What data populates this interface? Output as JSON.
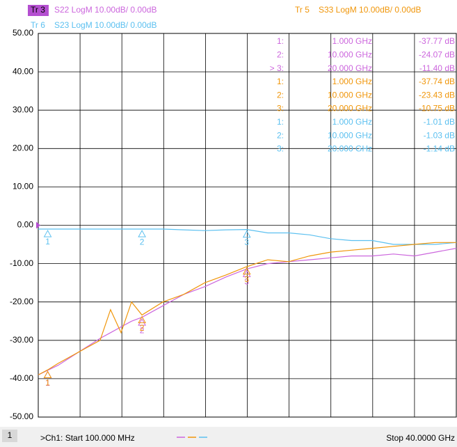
{
  "chart_data": {
    "type": "line",
    "traces": [
      {
        "tag": "Tr 3",
        "name": "S22 LogM 10.00dB/ 0.00dB"
      },
      {
        "tag": "Tr 5",
        "name": "S33 LogM 10.00dB/ 0.00dB"
      },
      {
        "tag": "Tr 6",
        "name": "S23 LogM 10.00dB/ 0.00dB"
      }
    ],
    "x": [
      0.1,
      1,
      2,
      4,
      6,
      7,
      8,
      9,
      10,
      12,
      14,
      16,
      18,
      20,
      22,
      24,
      26,
      28,
      30,
      32,
      34,
      36,
      38,
      40
    ],
    "series": [
      {
        "name": "S22 LogM 10.00dB/ 0.00dB",
        "color": "#cc66dd",
        "values": [
          -39,
          -37.8,
          -36.5,
          -33,
          -29.5,
          -28,
          -26.5,
          -25,
          -24,
          -21,
          -18,
          -16,
          -13.5,
          -11.4,
          -10,
          -9.5,
          -9,
          -8.5,
          -8,
          -8,
          -7.5,
          -8,
          -7,
          -6
        ]
      },
      {
        "name": "S33 LogM 10.00dB/ 0.00dB",
        "color": "#f0960a",
        "values": [
          -39,
          -37.7,
          -36,
          -33,
          -30,
          -22,
          -28,
          -20,
          -23.4,
          -20,
          -18,
          -15,
          -13,
          -10.8,
          -9,
          -9.5,
          -8,
          -7,
          -6.5,
          -6,
          -5.5,
          -5,
          -4.5,
          -4.5
        ]
      },
      {
        "name": "S23 LogM 10.00dB/ 0.00dB",
        "color": "#5bc0f0",
        "values": [
          -1,
          -1,
          -1,
          -1,
          -1,
          -1,
          -1,
          -1,
          -1,
          -1,
          -1.2,
          -1.4,
          -1.2,
          -1.1,
          -2,
          -2,
          -2.5,
          -3.5,
          -4,
          -4,
          -5,
          -5,
          -5,
          -4.5
        ]
      }
    ],
    "markers": [
      {
        "series": 0,
        "number": "1",
        "label": "1:",
        "x": 1,
        "x_label": "1.000 GHz",
        "value": -37.77,
        "value_label": "-37.77 dB"
      },
      {
        "series": 0,
        "number": "2",
        "label": "2:",
        "x": 10,
        "x_label": "10.000 GHz",
        "value": -24.07,
        "value_label": "-24.07 dB"
      },
      {
        "series": 0,
        "number": "3",
        "label": "> 3:",
        "x": 20,
        "x_label": "20.000 GHz",
        "value": -11.4,
        "value_label": "-11.40 dB"
      },
      {
        "series": 1,
        "number": "1",
        "label": "1:",
        "x": 1,
        "x_label": "1.000 GHz",
        "value": -37.74,
        "value_label": "-37.74 dB"
      },
      {
        "series": 1,
        "number": "2",
        "label": "2:",
        "x": 10,
        "x_label": "10.000 GHz",
        "value": -23.43,
        "value_label": "-23.43 dB"
      },
      {
        "series": 1,
        "number": "3",
        "label": "3:",
        "x": 20,
        "x_label": "20.000 GHz",
        "value": -10.75,
        "value_label": "-10.75 dB"
      },
      {
        "series": 2,
        "number": "1",
        "label": "1:",
        "x": 1,
        "x_label": "1.000 GHz",
        "value": -1.01,
        "value_label": "-1.01 dB"
      },
      {
        "series": 2,
        "number": "2",
        "label": "2:",
        "x": 10,
        "x_label": "10.000 GHz",
        "value": -1.03,
        "value_label": "-1.03 dB"
      },
      {
        "series": 2,
        "number": "3",
        "label": "3:",
        "x": 20,
        "x_label": "20.000 GHz",
        "value": -1.14,
        "value_label": "-1.14 dB"
      }
    ],
    "xlim": [
      0.1,
      40
    ],
    "ylim": [
      -50,
      50
    ],
    "yticks": [
      {
        "value": 50,
        "label": "50.00"
      },
      {
        "value": 40,
        "label": "40.00"
      },
      {
        "value": 30,
        "label": "30.00"
      },
      {
        "value": 20,
        "label": "20.00"
      },
      {
        "value": 10,
        "label": "10.00"
      },
      {
        "value": 0,
        "label": "0.00"
      },
      {
        "value": -10,
        "label": "-10.00"
      },
      {
        "value": -20,
        "label": "-20.00"
      },
      {
        "value": -30,
        "label": "-30.00"
      },
      {
        "value": -40,
        "label": "-40.00"
      },
      {
        "value": -50,
        "label": "-50.00"
      }
    ],
    "grid": true,
    "footer": {
      "channel": "1",
      "start": ">Ch1:  Start  100.000 MHz",
      "stop": "Stop  40.0000 GHz"
    }
  }
}
